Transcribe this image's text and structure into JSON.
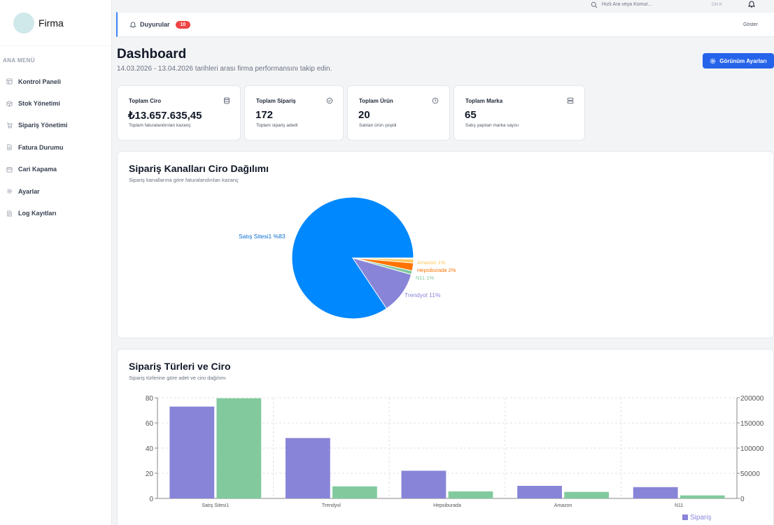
{
  "brand": {
    "name": "Firma"
  },
  "sidebar": {
    "section_title": "ANA MENÜ",
    "items": [
      {
        "label": "Kontrol Paneli",
        "icon": "dashboard-icon"
      },
      {
        "label": "Stok Yönetimi",
        "icon": "box-icon"
      },
      {
        "label": "Sipariş Yönetimi",
        "icon": "cart-icon"
      },
      {
        "label": "Fatura Durumu",
        "icon": "document-icon"
      },
      {
        "label": "Cari Kapama",
        "icon": "calendar-icon"
      },
      {
        "label": "Ayarlar",
        "icon": "gear-icon"
      },
      {
        "label": "Log Kayıtları",
        "icon": "log-icon"
      }
    ]
  },
  "topbar": {
    "search_placeholder": "Hızlı Ara veya Komut...",
    "shortcut": "Ctrl K"
  },
  "announcements": {
    "label": "Duyurular",
    "count": "10",
    "show_label": "Göster"
  },
  "header": {
    "title": "Dashboard",
    "subtitle": "14.03.2026 - 13.04.2026 tarihleri arası firma performansını takip edin.",
    "view_settings_label": "Görünüm Ayarları"
  },
  "stats": [
    {
      "label": "Toplam Ciro",
      "value": "₺13.657.635,45",
      "desc": "Toplam faturalandırılan kazanç",
      "icon": "database-icon"
    },
    {
      "label": "Toplam Sipariş",
      "value": "172",
      "desc": "Toplam sipariş adedi",
      "icon": "check-circle-icon"
    },
    {
      "label": "Toplam Ürün",
      "value": "20",
      "desc": "Satılan ürün çeşidi",
      "icon": "clock-icon"
    },
    {
      "label": "Toplam Marka",
      "value": "65",
      "desc": "Satış yapılan marka sayısı",
      "icon": "server-icon"
    }
  ],
  "pie_panel": {
    "title": "Sipariş Kanalları Ciro Dağılımı",
    "subtitle": "Sipariş kanallarına göre faturalandırılan kazanç"
  },
  "bar_panel": {
    "title": "Sipariş Türleri ve Ciro",
    "subtitle": "Sipariş türlerine göre adet ve ciro dağılımı"
  },
  "colors": {
    "accent": "#2563eb",
    "badge": "#ef4444",
    "pie_main": "#0088fe",
    "series_order": "#8884d8",
    "series_revenue": "#82ca9d"
  },
  "chart_data": [
    {
      "type": "pie",
      "categories": [
        "Satış Sitesi1",
        "Trendyol",
        "N11",
        "Hepsiburada",
        "Amazon"
      ],
      "values": [
        83,
        11,
        1,
        2,
        1
      ],
      "labels": [
        "Satış Sitesi1 %83",
        "Trendyol 11%",
        "N11 1%",
        "Hepsiburada 2%",
        "Amazon 1%"
      ],
      "colors": [
        "#0088fe",
        "#8884d8",
        "#82ca9d",
        "#ff7300",
        "#ffc658"
      ]
    },
    {
      "type": "bar",
      "categories": [
        "Satış Sitesi1",
        "Trendyol",
        "Hepsiburada",
        "Amazon",
        "N11"
      ],
      "series": [
        {
          "name": "Sipariş",
          "axis": "left",
          "values": [
            73,
            48,
            22,
            10,
            9
          ],
          "color": "#8884d8"
        },
        {
          "axis": "right",
          "values": [
            199000,
            24000,
            14000,
            13000,
            6000
          ],
          "color": "#82ca9d"
        }
      ],
      "ylim_left": [
        0,
        80
      ],
      "yticks_left": [
        0,
        20,
        40,
        60,
        80
      ],
      "ylim_right": [
        0,
        200000
      ],
      "yticks_right": [
        0,
        50000,
        100000,
        150000,
        200000
      ],
      "grid": true,
      "legend": "bottom-right"
    }
  ]
}
